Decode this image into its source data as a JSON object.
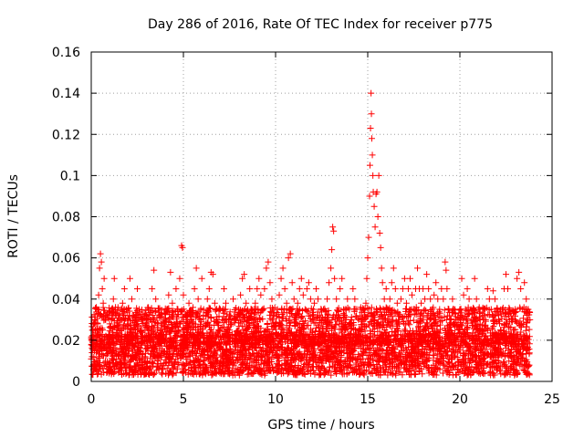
{
  "chart_data": {
    "type": "scatter",
    "title": "Day 286 of 2016, Rate Of TEC Index for receiver p775",
    "xlabel": "GPS time / hours",
    "ylabel": "ROTI / TECUs",
    "xlim": [
      0,
      25
    ],
    "ylim": [
      0,
      0.16
    ],
    "x_ticks": [
      0,
      5,
      10,
      15,
      20,
      25
    ],
    "x_tick_labels": [
      "0",
      "5",
      "10",
      "15",
      "20",
      "25"
    ],
    "y_ticks": [
      0,
      0.02,
      0.04,
      0.06,
      0.08,
      0.1,
      0.12,
      0.14,
      0.16
    ],
    "y_tick_labels": [
      "0",
      "0.02",
      "0.04",
      "0.06",
      "0.08",
      "0.1",
      "0.12",
      "0.14",
      "0.16"
    ],
    "grid": true,
    "marker": "+",
    "color": "#ff0000",
    "series": [
      {
        "name": "ROTI",
        "points": [
          [
            0.05,
            0.012
          ],
          [
            0.1,
            0.025
          ],
          [
            0.15,
            0.018
          ],
          [
            0.2,
            0.03
          ],
          [
            0.25,
            0.022
          ],
          [
            0.3,
            0.035
          ],
          [
            0.35,
            0.028
          ],
          [
            0.4,
            0.042
          ],
          [
            0.45,
            0.055
          ],
          [
            0.5,
            0.062
          ],
          [
            0.55,
            0.058
          ],
          [
            0.6,
            0.045
          ],
          [
            0.65,
            0.038
          ],
          [
            0.7,
            0.05
          ],
          [
            0.75,
            0.03
          ],
          [
            0.8,
            0.022
          ],
          [
            0.9,
            0.018
          ],
          [
            1.0,
            0.028
          ],
          [
            1.1,
            0.035
          ],
          [
            1.2,
            0.04
          ],
          [
            1.25,
            0.05
          ],
          [
            1.3,
            0.032
          ],
          [
            1.4,
            0.025
          ],
          [
            1.5,
            0.02
          ],
          [
            1.6,
            0.03
          ],
          [
            1.7,
            0.038
          ],
          [
            1.8,
            0.045
          ],
          [
            1.9,
            0.035
          ],
          [
            2.0,
            0.028
          ],
          [
            2.1,
            0.05
          ],
          [
            2.2,
            0.04
          ],
          [
            2.3,
            0.032
          ],
          [
            2.4,
            0.025
          ],
          [
            2.5,
            0.045
          ],
          [
            2.6,
            0.035
          ],
          [
            2.7,
            0.025
          ],
          [
            2.8,
            0.03
          ],
          [
            2.9,
            0.02
          ],
          [
            3.0,
            0.028
          ],
          [
            3.1,
            0.035
          ],
          [
            3.2,
            0.03
          ],
          [
            3.3,
            0.045
          ],
          [
            3.4,
            0.054
          ],
          [
            3.5,
            0.04
          ],
          [
            3.6,
            0.025
          ],
          [
            3.7,
            0.032
          ],
          [
            3.8,
            0.028
          ],
          [
            3.9,
            0.02
          ],
          [
            4.0,
            0.03
          ],
          [
            4.1,
            0.035
          ],
          [
            4.2,
            0.042
          ],
          [
            4.3,
            0.053
          ],
          [
            4.4,
            0.038
          ],
          [
            4.5,
            0.028
          ],
          [
            4.6,
            0.045
          ],
          [
            4.7,
            0.035
          ],
          [
            4.8,
            0.05
          ],
          [
            4.9,
            0.066
          ],
          [
            4.95,
            0.065
          ],
          [
            5.0,
            0.042
          ],
          [
            5.1,
            0.032
          ],
          [
            5.2,
            0.025
          ],
          [
            5.3,
            0.038
          ],
          [
            5.4,
            0.03
          ],
          [
            5.5,
            0.025
          ],
          [
            5.6,
            0.045
          ],
          [
            5.7,
            0.055
          ],
          [
            5.8,
            0.04
          ],
          [
            5.9,
            0.03
          ],
          [
            6.0,
            0.05
          ],
          [
            6.1,
            0.035
          ],
          [
            6.2,
            0.028
          ],
          [
            6.3,
            0.04
          ],
          [
            6.4,
            0.045
          ],
          [
            6.5,
            0.053
          ],
          [
            6.6,
            0.052
          ],
          [
            6.7,
            0.038
          ],
          [
            6.8,
            0.03
          ],
          [
            6.9,
            0.025
          ],
          [
            7.0,
            0.035
          ],
          [
            7.1,
            0.03
          ],
          [
            7.2,
            0.045
          ],
          [
            7.3,
            0.038
          ],
          [
            7.4,
            0.025
          ],
          [
            7.5,
            0.032
          ],
          [
            7.6,
            0.028
          ],
          [
            7.7,
            0.04
          ],
          [
            7.8,
            0.03
          ],
          [
            7.9,
            0.022
          ],
          [
            8.0,
            0.035
          ],
          [
            8.1,
            0.042
          ],
          [
            8.2,
            0.05
          ],
          [
            8.3,
            0.052
          ],
          [
            8.4,
            0.038
          ],
          [
            8.5,
            0.03
          ],
          [
            8.6,
            0.045
          ],
          [
            8.7,
            0.035
          ],
          [
            8.8,
            0.028
          ],
          [
            8.9,
            0.038
          ],
          [
            9.0,
            0.045
          ],
          [
            9.1,
            0.05
          ],
          [
            9.2,
            0.042
          ],
          [
            9.3,
            0.035
          ],
          [
            9.4,
            0.045
          ],
          [
            9.5,
            0.055
          ],
          [
            9.6,
            0.058
          ],
          [
            9.7,
            0.048
          ],
          [
            9.8,
            0.04
          ],
          [
            9.9,
            0.032
          ],
          [
            10.0,
            0.028
          ],
          [
            10.1,
            0.035
          ],
          [
            10.2,
            0.042
          ],
          [
            10.3,
            0.05
          ],
          [
            10.4,
            0.055
          ],
          [
            10.5,
            0.045
          ],
          [
            10.6,
            0.038
          ],
          [
            10.7,
            0.06
          ],
          [
            10.8,
            0.062
          ],
          [
            10.9,
            0.048
          ],
          [
            11.0,
            0.04
          ],
          [
            11.1,
            0.032
          ],
          [
            11.2,
            0.038
          ],
          [
            11.3,
            0.045
          ],
          [
            11.4,
            0.05
          ],
          [
            11.5,
            0.042
          ],
          [
            11.6,
            0.035
          ],
          [
            11.7,
            0.045
          ],
          [
            11.8,
            0.048
          ],
          [
            11.9,
            0.04
          ],
          [
            12.0,
            0.032
          ],
          [
            12.1,
            0.038
          ],
          [
            12.2,
            0.045
          ],
          [
            12.3,
            0.04
          ],
          [
            12.4,
            0.032
          ],
          [
            12.5,
            0.03
          ],
          [
            12.6,
            0.035
          ],
          [
            12.7,
            0.03
          ],
          [
            12.8,
            0.04
          ],
          [
            12.9,
            0.048
          ],
          [
            13.0,
            0.055
          ],
          [
            13.05,
            0.064
          ],
          [
            13.1,
            0.075
          ],
          [
            13.15,
            0.073
          ],
          [
            13.2,
            0.05
          ],
          [
            13.3,
            0.04
          ],
          [
            13.4,
            0.032
          ],
          [
            13.5,
            0.045
          ],
          [
            13.6,
            0.05
          ],
          [
            13.7,
            0.035
          ],
          [
            13.8,
            0.03
          ],
          [
            13.9,
            0.04
          ],
          [
            14.0,
            0.035
          ],
          [
            14.1,
            0.03
          ],
          [
            14.2,
            0.045
          ],
          [
            14.3,
            0.04
          ],
          [
            14.4,
            0.035
          ],
          [
            14.5,
            0.03
          ],
          [
            14.6,
            0.035
          ],
          [
            14.7,
            0.03
          ],
          [
            14.8,
            0.028
          ],
          [
            14.9,
            0.038
          ],
          [
            14.95,
            0.05
          ],
          [
            15.0,
            0.06
          ],
          [
            15.05,
            0.07
          ],
          [
            15.1,
            0.09
          ],
          [
            15.12,
            0.105
          ],
          [
            15.15,
            0.123
          ],
          [
            15.18,
            0.14
          ],
          [
            15.2,
            0.13
          ],
          [
            15.22,
            0.118
          ],
          [
            15.25,
            0.11
          ],
          [
            15.28,
            0.1
          ],
          [
            15.3,
            0.092
          ],
          [
            15.35,
            0.085
          ],
          [
            15.4,
            0.075
          ],
          [
            15.45,
            0.091
          ],
          [
            15.5,
            0.092
          ],
          [
            15.55,
            0.08
          ],
          [
            15.6,
            0.1
          ],
          [
            15.65,
            0.072
          ],
          [
            15.7,
            0.065
          ],
          [
            15.75,
            0.055
          ],
          [
            15.8,
            0.048
          ],
          [
            15.9,
            0.04
          ],
          [
            16.0,
            0.045
          ],
          [
            16.1,
            0.035
          ],
          [
            16.2,
            0.04
          ],
          [
            16.3,
            0.048
          ],
          [
            16.4,
            0.055
          ],
          [
            16.5,
            0.045
          ],
          [
            16.6,
            0.038
          ],
          [
            16.7,
            0.03
          ],
          [
            16.8,
            0.04
          ],
          [
            16.9,
            0.045
          ],
          [
            17.0,
            0.05
          ],
          [
            17.1,
            0.038
          ],
          [
            17.2,
            0.045
          ],
          [
            17.3,
            0.05
          ],
          [
            17.4,
            0.042
          ],
          [
            17.5,
            0.035
          ],
          [
            17.6,
            0.045
          ],
          [
            17.7,
            0.055
          ],
          [
            17.8,
            0.045
          ],
          [
            17.9,
            0.038
          ],
          [
            18.0,
            0.045
          ],
          [
            18.1,
            0.04
          ],
          [
            18.2,
            0.052
          ],
          [
            18.3,
            0.045
          ],
          [
            18.4,
            0.04
          ],
          [
            18.5,
            0.035
          ],
          [
            18.6,
            0.042
          ],
          [
            18.7,
            0.048
          ],
          [
            18.8,
            0.04
          ],
          [
            18.9,
            0.035
          ],
          [
            19.0,
            0.045
          ],
          [
            19.1,
            0.04
          ],
          [
            19.2,
            0.058
          ],
          [
            19.25,
            0.054
          ],
          [
            19.3,
            0.045
          ],
          [
            19.4,
            0.035
          ],
          [
            19.5,
            0.03
          ],
          [
            19.6,
            0.04
          ],
          [
            19.7,
            0.035
          ],
          [
            19.8,
            0.03
          ],
          [
            19.9,
            0.025
          ],
          [
            20.0,
            0.035
          ],
          [
            20.1,
            0.05
          ],
          [
            20.2,
            0.042
          ],
          [
            20.3,
            0.035
          ],
          [
            20.4,
            0.045
          ],
          [
            20.5,
            0.04
          ],
          [
            20.6,
            0.035
          ],
          [
            20.7,
            0.03
          ],
          [
            20.8,
            0.05
          ],
          [
            20.9,
            0.04
          ],
          [
            21.0,
            0.035
          ],
          [
            21.1,
            0.03
          ],
          [
            21.2,
            0.025
          ],
          [
            21.3,
            0.035
          ],
          [
            21.4,
            0.03
          ],
          [
            21.5,
            0.045
          ],
          [
            21.6,
            0.04
          ],
          [
            21.7,
            0.035
          ],
          [
            21.8,
            0.044
          ],
          [
            21.9,
            0.04
          ],
          [
            22.0,
            0.035
          ],
          [
            22.1,
            0.03
          ],
          [
            22.2,
            0.025
          ],
          [
            22.3,
            0.035
          ],
          [
            22.4,
            0.045
          ],
          [
            22.5,
            0.052
          ],
          [
            22.6,
            0.045
          ],
          [
            22.7,
            0.035
          ],
          [
            22.8,
            0.03
          ],
          [
            22.9,
            0.025
          ],
          [
            23.0,
            0.035
          ],
          [
            23.1,
            0.05
          ],
          [
            23.2,
            0.053
          ],
          [
            23.3,
            0.045
          ],
          [
            23.4,
            0.035
          ],
          [
            23.5,
            0.048
          ],
          [
            23.6,
            0.04
          ],
          [
            23.7,
            0.035
          ],
          [
            23.8,
            0.03
          ]
        ]
      }
    ]
  }
}
